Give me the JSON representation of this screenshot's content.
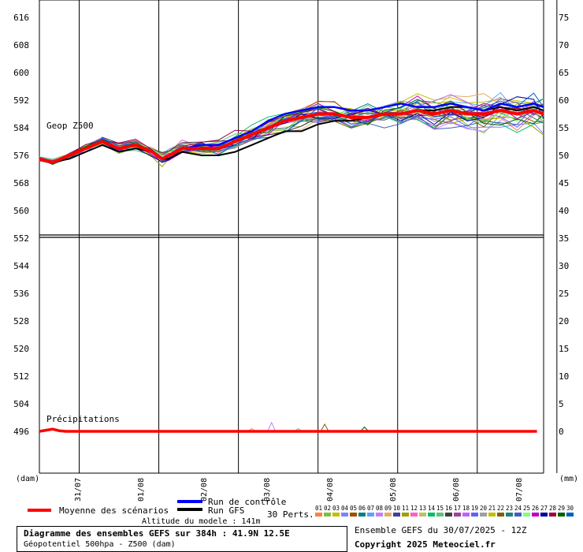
{
  "chart_data": {
    "type": "line",
    "upper_panel": {
      "label": "Geop Z500",
      "y_left_ticks": [
        "616",
        "608",
        "600",
        "592",
        "584",
        "576",
        "568",
        "560",
        "552"
      ],
      "y_right_ticks": [
        "75",
        "70",
        "65",
        "60",
        "55",
        "50",
        "45",
        "40",
        "35"
      ],
      "ylim": [
        552,
        620
      ],
      "mean_series_name": "Moyenne des scénarios",
      "mean_points": [
        [
          0,
          575
        ],
        [
          4,
          574
        ],
        [
          9,
          576
        ],
        [
          14,
          578
        ],
        [
          19,
          580
        ],
        [
          24,
          578
        ],
        [
          29,
          579
        ],
        [
          34,
          577
        ],
        [
          37,
          575
        ],
        [
          39,
          576
        ],
        [
          43,
          578
        ],
        [
          49,
          578
        ],
        [
          54,
          578
        ],
        [
          59,
          580
        ],
        [
          64,
          582
        ],
        [
          69,
          584
        ],
        [
          74,
          586
        ],
        [
          79,
          587
        ],
        [
          84,
          588
        ],
        [
          89,
          588
        ],
        [
          94,
          587
        ],
        [
          99,
          587
        ],
        [
          104,
          588
        ],
        [
          109,
          588
        ],
        [
          114,
          589
        ],
        [
          119,
          588
        ],
        [
          124,
          589
        ],
        [
          129,
          588
        ],
        [
          134,
          588
        ],
        [
          139,
          589
        ],
        [
          144,
          588
        ],
        [
          149,
          589
        ],
        [
          152,
          588
        ]
      ],
      "control_points": [
        [
          0,
          575
        ],
        [
          4,
          574
        ],
        [
          9,
          576
        ],
        [
          14,
          578
        ],
        [
          19,
          580
        ],
        [
          24,
          578
        ],
        [
          29,
          579
        ],
        [
          34,
          577
        ],
        [
          37,
          575
        ],
        [
          39,
          576
        ],
        [
          43,
          578
        ],
        [
          49,
          579
        ],
        [
          54,
          579
        ],
        [
          59,
          581
        ],
        [
          64,
          583
        ],
        [
          69,
          586
        ],
        [
          74,
          588
        ],
        [
          79,
          589
        ],
        [
          84,
          590
        ],
        [
          89,
          590
        ],
        [
          94,
          589
        ],
        [
          99,
          589
        ],
        [
          104,
          590
        ],
        [
          109,
          591
        ],
        [
          114,
          590
        ],
        [
          119,
          590
        ],
        [
          124,
          591
        ],
        [
          129,
          590
        ],
        [
          134,
          589
        ],
        [
          139,
          591
        ],
        [
          144,
          590
        ],
        [
          149,
          591
        ],
        [
          152,
          590
        ]
      ],
      "gfs_points": [
        [
          0,
          575
        ],
        [
          4,
          574
        ],
        [
          9,
          575
        ],
        [
          14,
          577
        ],
        [
          19,
          579
        ],
        [
          24,
          577
        ],
        [
          29,
          578
        ],
        [
          34,
          577
        ],
        [
          37,
          575
        ],
        [
          39,
          575
        ],
        [
          43,
          577
        ],
        [
          49,
          576
        ],
        [
          54,
          576
        ],
        [
          59,
          577
        ],
        [
          64,
          579
        ],
        [
          69,
          581
        ],
        [
          74,
          583
        ],
        [
          79,
          583
        ],
        [
          84,
          585
        ],
        [
          89,
          586
        ],
        [
          94,
          586
        ],
        [
          99,
          587
        ],
        [
          104,
          588
        ],
        [
          109,
          588
        ],
        [
          114,
          589
        ],
        [
          119,
          589
        ],
        [
          124,
          590
        ],
        [
          129,
          590
        ],
        [
          134,
          589
        ],
        [
          139,
          590
        ],
        [
          144,
          589
        ],
        [
          149,
          590
        ],
        [
          152,
          589
        ]
      ]
    },
    "lower_panel": {
      "label": "Précipitations",
      "y_left_ticks": [
        "552",
        "544",
        "536",
        "528",
        "520",
        "512",
        "504",
        "496"
      ],
      "y_right_ticks": [
        "35",
        "30",
        "25",
        "20",
        "15",
        "10",
        "5",
        "0"
      ],
      "ylim": [
        0,
        35
      ],
      "mean_points": [
        [
          0,
          0
        ],
        [
          2,
          0.2
        ],
        [
          4,
          0.4
        ],
        [
          6,
          0.1
        ],
        [
          8,
          0
        ],
        [
          150,
          0
        ]
      ],
      "spike_points": [
        [
          64,
          0.5
        ],
        [
          70,
          1.6
        ],
        [
          78,
          0.5
        ],
        [
          86,
          1.3
        ],
        [
          98,
          0.8
        ]
      ]
    },
    "x_tick_labels": [
      "31/07",
      "01/08",
      "02/08",
      "03/08",
      "04/08",
      "05/08",
      "06/08",
      "07/08"
    ],
    "x_tick_hours": [
      12,
      36,
      60,
      84,
      108,
      132,
      156,
      180
    ],
    "x_unit_left": "(dam)",
    "x_unit_right": "(mm)",
    "members_count_label": "30 Perts.",
    "member_numbers": [
      "01",
      "02",
      "03",
      "04",
      "05",
      "06",
      "07",
      "08",
      "09",
      "10",
      "11",
      "12",
      "13",
      "14",
      "15",
      "16",
      "17",
      "18",
      "19",
      "20",
      "21",
      "22",
      "23",
      "24",
      "25",
      "26",
      "27",
      "28",
      "29",
      "30"
    ],
    "member_colors": [
      "#ff8040",
      "#80c040",
      "#c0c000",
      "#8080ff",
      "#a05000",
      "#008080",
      "#60a0ff",
      "#c080ff",
      "#e0b060",
      "#4040a0",
      "#a0a000",
      "#ff60c0",
      "#c0c060",
      "#00c060",
      "#60c080",
      "#404040",
      "#a040a0",
      "#c060ff",
      "#6060ff",
      "#a0a0a0",
      "#c0c000",
      "#806000",
      "#208080",
      "#4060c0",
      "#80ff80",
      "#c000c0",
      "#0000a0",
      "#a00040",
      "#006000",
      "#0060c0"
    ],
    "legend": {
      "mean_label": "Moyenne des scénarios",
      "control_label": "Run de contrôle",
      "gfs_label": "Run GFS",
      "mean_color": "#ff0000",
      "control_color": "#0000ff",
      "gfs_color": "#000000"
    }
  },
  "page": {
    "altitude": "Altitude du modele : 141m",
    "title": "Diagramme des ensembles GEFS sur 384h : 41.9N 12.5E",
    "subtitle": "Géopotentiel 500hpa - Z500 (dam)",
    "ensemble_label": "Ensemble GEFS du 30/07/2025 - 12Z",
    "copyright": "Copyright 2025 Meteociel.fr"
  }
}
